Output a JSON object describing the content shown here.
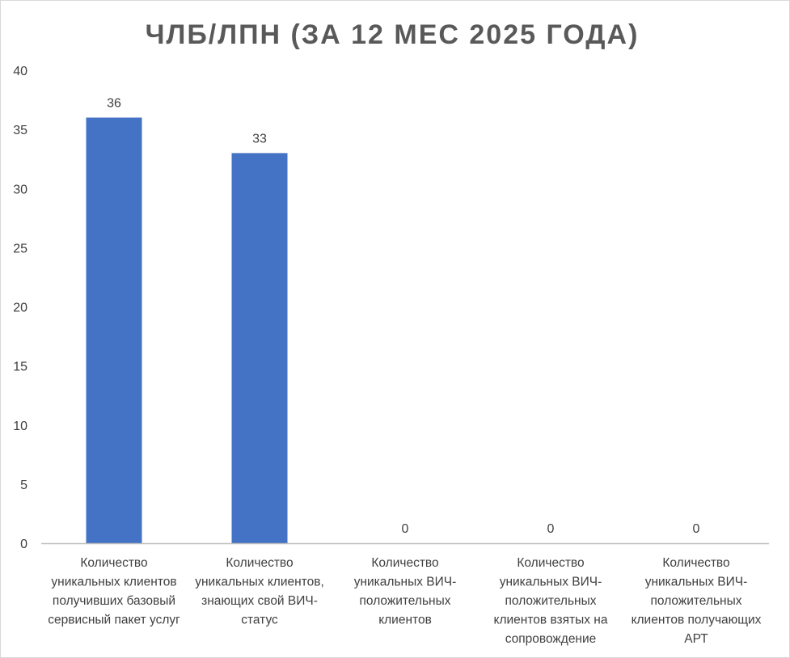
{
  "chart_data": {
    "type": "bar",
    "title": "ЧЛБ/ЛПН (ЗА 12 МЕС 2025 ГОДА)",
    "categories": [
      [
        "Количество",
        "уникальных клиентов",
        "получивших базовый",
        "сервисный пакет услуг"
      ],
      [
        "Количество",
        "уникальных клиентов,",
        "знающих свой ВИЧ-",
        "статус"
      ],
      [
        "Количество",
        "уникальных ВИЧ-",
        "положительных",
        "клиентов"
      ],
      [
        "Количество",
        "уникальных ВИЧ-",
        "положительных",
        "клиентов взятых на",
        "сопровождение"
      ],
      [
        "Количество",
        "уникальных ВИЧ-",
        "положительных",
        "клиентов получающих",
        "АРТ"
      ]
    ],
    "values": [
      36,
      33,
      0,
      0,
      0
    ],
    "data_labels": [
      "36",
      "33",
      "0",
      "0",
      "0"
    ],
    "ylim": [
      0,
      40
    ],
    "yticks": [
      "0",
      "5",
      "10",
      "15",
      "20",
      "25",
      "30",
      "35",
      "40"
    ],
    "xlabel": "",
    "ylabel": "",
    "grid": false,
    "legend": "none",
    "bar_color": "#4472c4",
    "axis_color": "#bfbfbf",
    "text_color": "#404040",
    "title_color": "#595959"
  }
}
